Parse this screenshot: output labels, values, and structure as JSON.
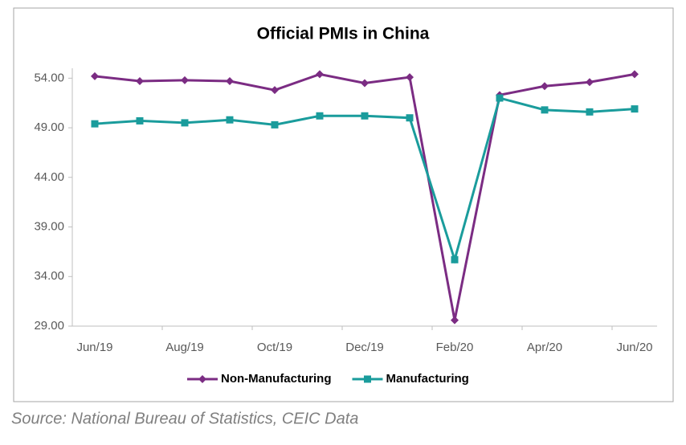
{
  "chart_data": {
    "type": "line",
    "title": "Official PMIs in China",
    "categories": [
      "Jun/19",
      null,
      "Aug/19",
      null,
      "Oct/19",
      null,
      "Dec/19",
      null,
      "Feb/20",
      null,
      "Apr/20",
      null,
      "Jun/20"
    ],
    "series": [
      {
        "name": "Non-Manufacturing",
        "color": "#7b2c83",
        "marker": "diamond",
        "values": [
          54.2,
          53.7,
          53.8,
          53.7,
          52.8,
          54.4,
          53.5,
          54.1,
          29.6,
          52.3,
          53.2,
          53.6,
          54.4
        ]
      },
      {
        "name": "Manufacturing",
        "color": "#1a9c9c",
        "marker": "square",
        "values": [
          49.4,
          49.7,
          49.5,
          49.8,
          49.3,
          50.2,
          50.2,
          50.0,
          35.7,
          52.0,
          50.8,
          50.6,
          50.9
        ]
      }
    ],
    "ylim": [
      29,
      55
    ],
    "yticks": [
      {
        "value": 29,
        "label": "29.00"
      },
      {
        "value": 34,
        "label": "34.00"
      },
      {
        "value": 39,
        "label": "39.00"
      },
      {
        "value": 44,
        "label": "44.00"
      },
      {
        "value": 49,
        "label": "49.00"
      },
      {
        "value": 54,
        "label": "54.00"
      }
    ],
    "grid": false,
    "legend": "bottom",
    "source": "Source: National Bureau of Statistics, CEIC Data"
  }
}
